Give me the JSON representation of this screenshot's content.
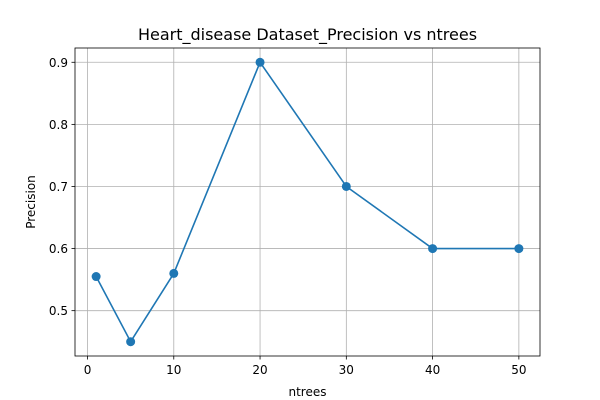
{
  "chart_data": {
    "type": "line",
    "title": "Heart_disease Dataset_Precision vs ntrees",
    "xlabel": "ntrees",
    "ylabel": "Precision",
    "x": [
      1,
      5,
      10,
      20,
      30,
      40,
      50
    ],
    "series": [
      {
        "values": [
          0.555,
          0.45,
          0.56,
          0.9,
          0.7,
          0.6,
          0.6
        ],
        "color": "#1f77b4",
        "marker": "circle"
      }
    ],
    "xlim": [
      -1.45,
      52.45
    ],
    "ylim": [
      0.427,
      0.923
    ],
    "xticks": [
      0,
      10,
      20,
      30,
      40,
      50
    ],
    "xtick_labels": [
      "0",
      "10",
      "20",
      "30",
      "40",
      "50"
    ],
    "yticks": [
      0.5,
      0.6,
      0.7,
      0.8,
      0.9
    ],
    "ytick_labels": [
      "0.5",
      "0.6",
      "0.7",
      "0.8",
      "0.9"
    ],
    "grid": true
  }
}
